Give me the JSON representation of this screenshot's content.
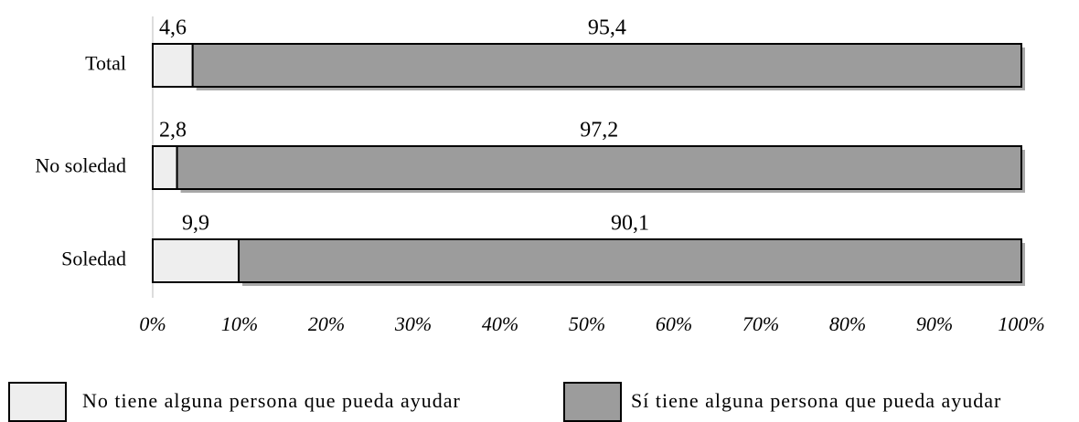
{
  "chart_data": {
    "type": "stacked_bar_horizontal",
    "categories": [
      "Total",
      "No soledad",
      "Soledad"
    ],
    "series": [
      {
        "name": "No tiene alguna persona que pueda ayudar",
        "color": "#eeeeee",
        "values": [
          4.6,
          2.8,
          9.9
        ],
        "value_labels": [
          "4,6",
          "2,8",
          "9,9"
        ]
      },
      {
        "name": "Sí tiene alguna persona que pueda ayudar",
        "color": "#9c9c9c",
        "values": [
          95.4,
          97.2,
          90.1
        ],
        "value_labels": [
          "95,4",
          "97,2",
          "90,1"
        ]
      }
    ],
    "xlim": [
      0,
      100
    ],
    "xticks": [
      {
        "value": 0,
        "label": "0%"
      },
      {
        "value": 10,
        "label": "10%"
      },
      {
        "value": 20,
        "label": "20%"
      },
      {
        "value": 30,
        "label": "30%"
      },
      {
        "value": 40,
        "label": "40%"
      },
      {
        "value": 50,
        "label": "50%"
      },
      {
        "value": 60,
        "label": "60%"
      },
      {
        "value": 70,
        "label": "70%"
      },
      {
        "value": 80,
        "label": "80%"
      },
      {
        "value": 90,
        "label": "90%"
      },
      {
        "value": 100,
        "label": "100%"
      }
    ],
    "legend": "bottom"
  }
}
